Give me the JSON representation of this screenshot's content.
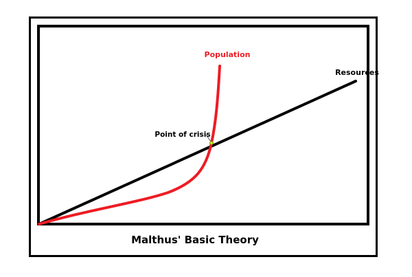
{
  "title": "Malthus' Basic Theory",
  "labels": {
    "population": "Population",
    "resources": "Resources",
    "crisis": "Point of crisis"
  },
  "colors": {
    "population": "#ee1c24",
    "resources": "#000000",
    "crisis_marker": "#c8e020",
    "frame": "#000000"
  }
}
